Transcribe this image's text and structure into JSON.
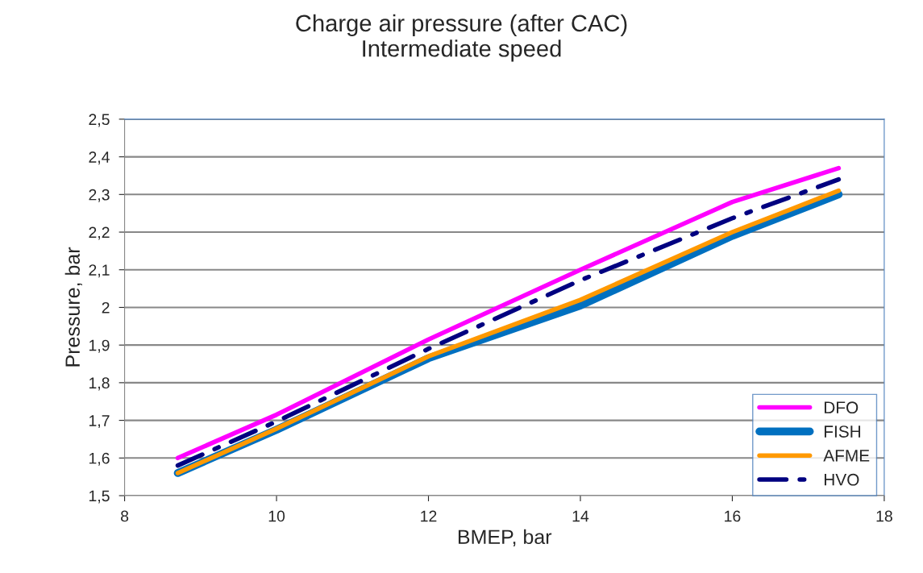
{
  "chart_data": {
    "type": "line",
    "title": "Charge air pressure (after CAC)\nIntermediate speed",
    "xlabel": "BMEP, bar",
    "ylabel": "Pressure, bar",
    "x": [
      8.7,
      10,
      12,
      14,
      16,
      17.4
    ],
    "series": [
      {
        "name": "DFO",
        "color": "#ff00ff",
        "line_style": "solid",
        "values": [
          1.6,
          1.715,
          1.915,
          2.1,
          2.28,
          2.37
        ]
      },
      {
        "name": "FISH",
        "color": "#0070c0",
        "line_style": "solid",
        "values": [
          1.56,
          1.675,
          1.865,
          2.005,
          2.19,
          2.3
        ]
      },
      {
        "name": "AFME",
        "color": "#ff9900",
        "line_style": "solid",
        "values": [
          1.56,
          1.678,
          1.87,
          2.02,
          2.2,
          2.31
        ]
      },
      {
        "name": "HVO",
        "color": "#000080",
        "line_style": "dashdot",
        "values": [
          1.58,
          1.697,
          1.89,
          2.072,
          2.237,
          2.34
        ]
      }
    ],
    "xlim": [
      8,
      18
    ],
    "xticks": [
      8,
      10,
      12,
      14,
      16,
      18
    ],
    "ylim": [
      1.5,
      2.5
    ],
    "yticks": [
      {
        "value": 1.5,
        "label": "1,5"
      },
      {
        "value": 1.6,
        "label": "1,6"
      },
      {
        "value": 1.7,
        "label": "1,7"
      },
      {
        "value": 1.8,
        "label": "1,8"
      },
      {
        "value": 1.9,
        "label": "1,9"
      },
      {
        "value": 2,
        "label": "2"
      },
      {
        "value": 2.1,
        "label": "2,1"
      },
      {
        "value": 2.2,
        "label": "2,2"
      },
      {
        "value": 2.3,
        "label": "2,3"
      },
      {
        "value": 2.4,
        "label": "2,4"
      },
      {
        "value": 2.5,
        "label": "2,5"
      }
    ],
    "grid": "y",
    "legend": "bottom right",
    "marker": "none"
  }
}
